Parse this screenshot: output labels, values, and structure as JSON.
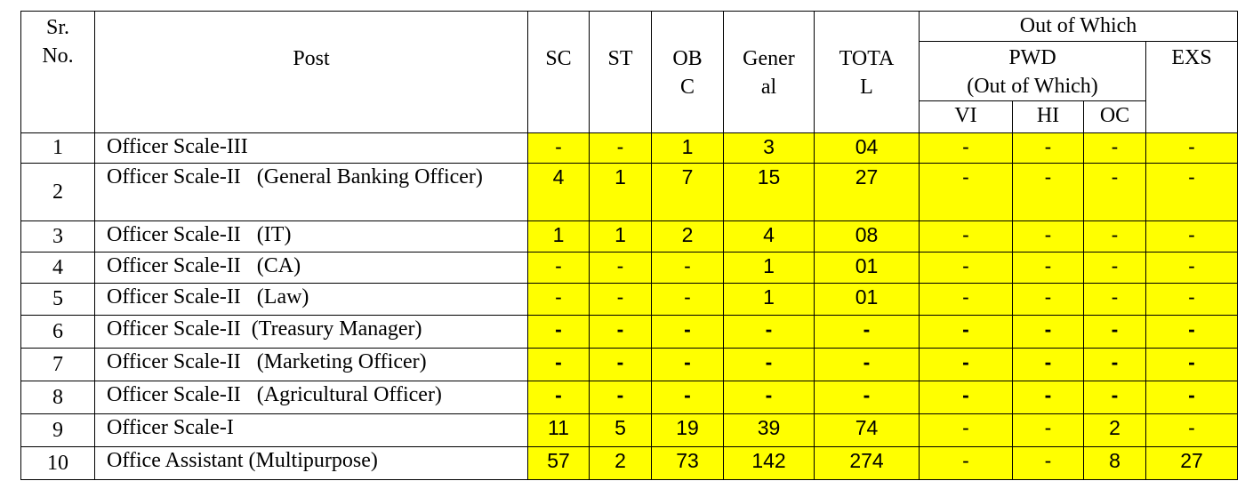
{
  "header": {
    "sr": "Sr.\nNo.",
    "sr_line1": "Sr.",
    "sr_line2": "No.",
    "post": "Post",
    "sc": "SC",
    "st": "ST",
    "obc_line1": "OB",
    "obc_line2": "C",
    "general_line1": "Gener",
    "general_line2": "al",
    "total_line1": "TOTA",
    "total_line2": "L",
    "out_of_which": "Out of Which",
    "pwd_line1": "PWD",
    "pwd_line2": "(Out of Which)",
    "exs": "EXS",
    "vi": "VI",
    "hi": "HI",
    "oc": "OC"
  },
  "rows": [
    {
      "sr": "1",
      "post": "Officer Scale-III",
      "sc": "-",
      "st": "-",
      "obc": "1",
      "general": "3",
      "total": "04",
      "vi": "-",
      "hi": "-",
      "oc": "-",
      "exs": "-"
    },
    {
      "sr": "2",
      "post": "Officer Scale-II   (General Banking Officer)",
      "sc": "4",
      "st": "1",
      "obc": "7",
      "general": "15",
      "total": "27",
      "vi": "-",
      "hi": "-",
      "oc": "-",
      "exs": "-"
    },
    {
      "sr": "3",
      "post": "Officer Scale-II   (IT)",
      "sc": "1",
      "st": "1",
      "obc": "2",
      "general": "4",
      "total": "08",
      "vi": "-",
      "hi": "-",
      "oc": "-",
      "exs": "-"
    },
    {
      "sr": "4",
      "post": "Officer Scale-II   (CA)",
      "sc": "-",
      "st": "-",
      "obc": "-",
      "general": "1",
      "total": "01",
      "vi": "-",
      "hi": "-",
      "oc": "-",
      "exs": "-"
    },
    {
      "sr": "5",
      "post": "Officer Scale-II   (Law)",
      "sc": "-",
      "st": "-",
      "obc": "-",
      "general": "1",
      "total": "01",
      "vi": "-",
      "hi": "-",
      "oc": "-",
      "exs": "-"
    },
    {
      "sr": "6",
      "post": "Officer Scale-II  (Treasury Manager)",
      "sc": "-",
      "st": "-",
      "obc": "-",
      "general": "-",
      "total": "-",
      "vi": "-",
      "hi": "-",
      "oc": "-",
      "exs": "-"
    },
    {
      "sr": "7",
      "post": "Officer Scale-II   (Marketing Officer)",
      "sc": "-",
      "st": "-",
      "obc": "-",
      "general": "-",
      "total": "-",
      "vi": "-",
      "hi": "-",
      "oc": "-",
      "exs": "-"
    },
    {
      "sr": "8",
      "post": "Officer Scale-II   (Agricultural Officer)",
      "sc": "-",
      "st": "-",
      "obc": "-",
      "general": "-",
      "total": "-",
      "vi": "-",
      "hi": "-",
      "oc": "-",
      "exs": "-"
    },
    {
      "sr": "9",
      "post": "Officer Scale-I",
      "sc": "11",
      "st": "5",
      "obc": "19",
      "general": "39",
      "total": "74",
      "vi": "-",
      "hi": "-",
      "oc": "2",
      "exs": "-"
    },
    {
      "sr": "10",
      "post": "Office Assistant (Multipurpose)",
      "sc": "57",
      "st": "2",
      "obc": "73",
      "general": "142",
      "total": "274",
      "vi": "-",
      "hi": "-",
      "oc": "8",
      "exs": "27"
    }
  ],
  "colors": {
    "highlight": "#ffff00",
    "border": "#000000",
    "text": "#000000"
  }
}
